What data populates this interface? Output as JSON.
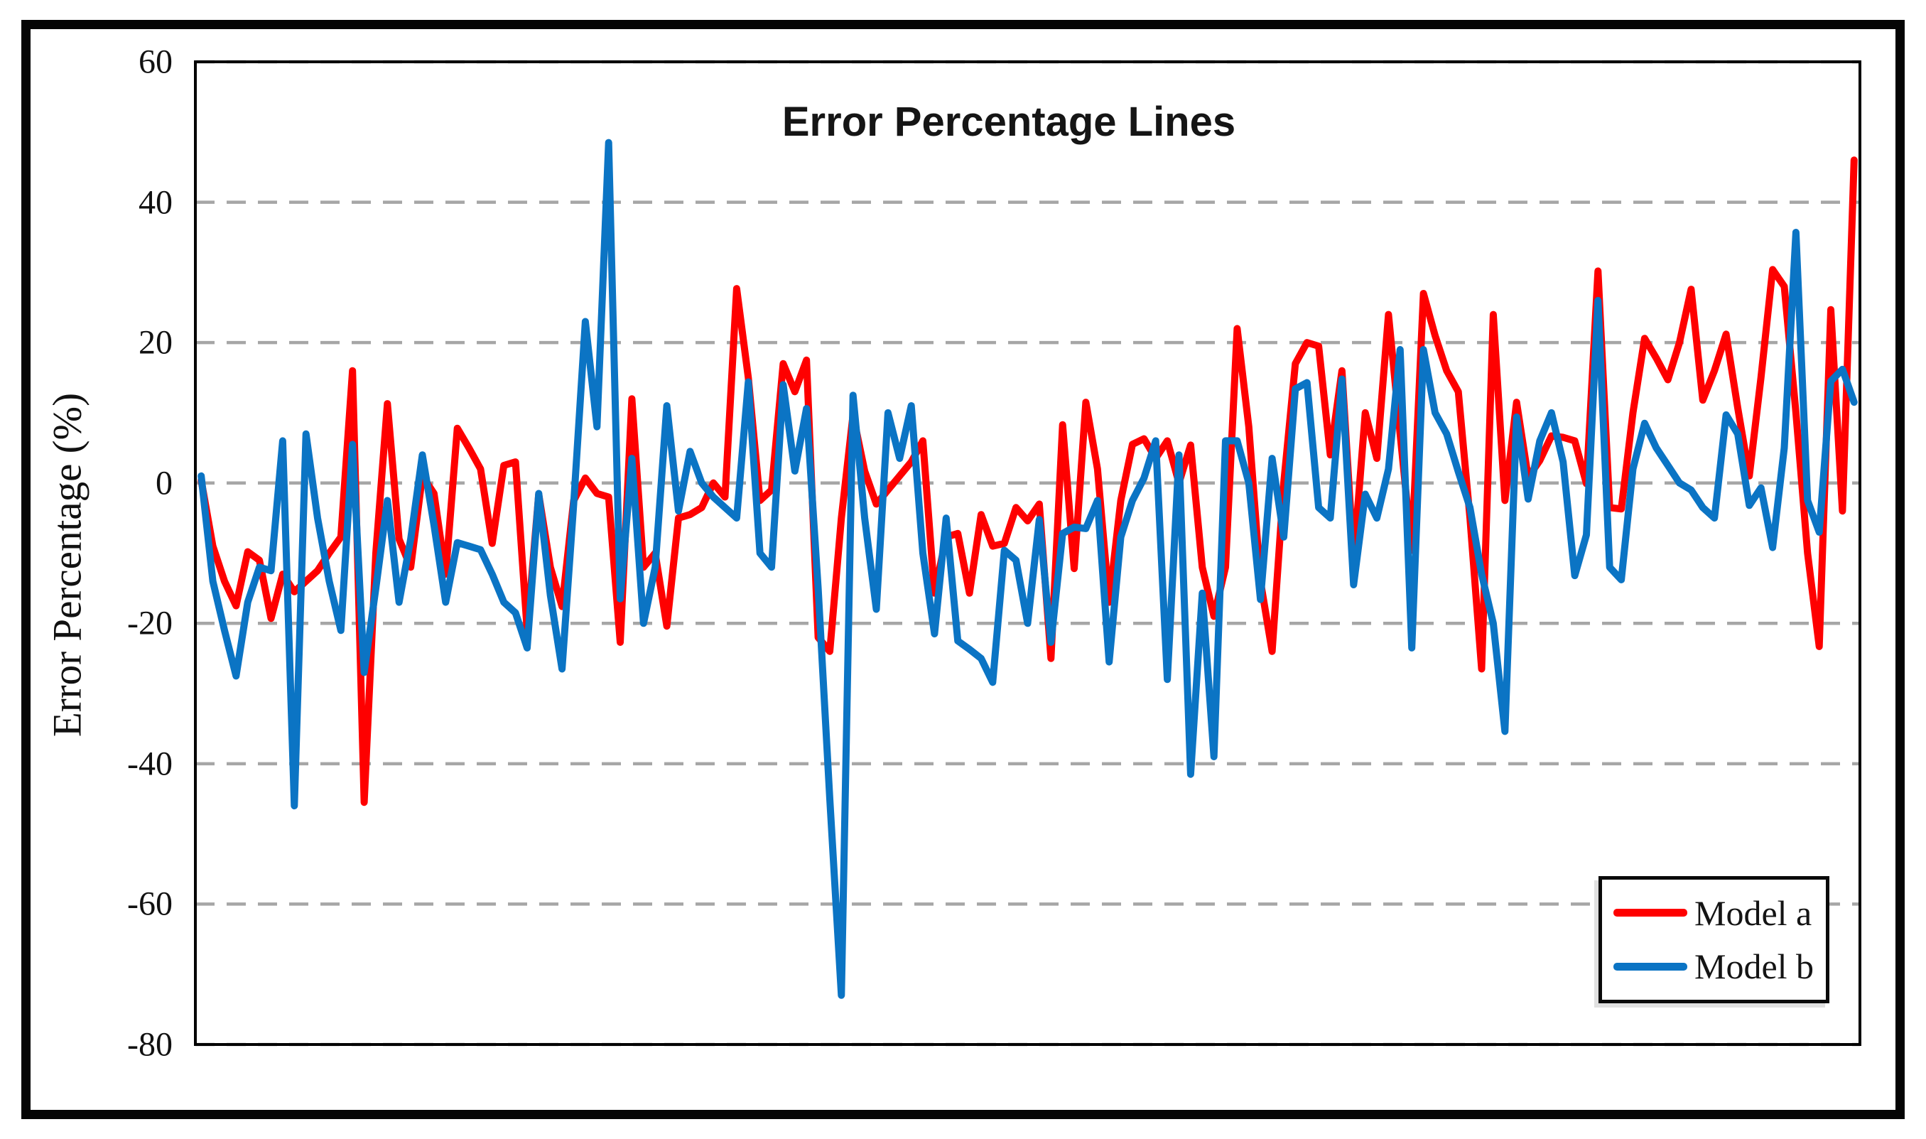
{
  "chart_data": {
    "type": "line",
    "title": "Error Percentage Lines",
    "xlabel": "",
    "ylabel": "Error Percentage (%)",
    "ylim": [
      -80,
      60
    ],
    "y_ticks": [
      60,
      40,
      20,
      0,
      -20,
      -40,
      -60,
      -80
    ],
    "x_axis_labels": "none",
    "grid": "horizontal-dashed",
    "grid_color": "#a6a6a6",
    "plot_border_color": "#000000",
    "legend_position": "bottom-right",
    "series": [
      {
        "name": "Model a",
        "color": "#fe0000",
        "values": [
          0.4,
          -9,
          -14,
          -17.5,
          -9.8,
          -11,
          -19.3,
          -13,
          -15.5,
          -14,
          -12.5,
          -10,
          -7.7,
          16,
          -45.5,
          -10,
          11.3,
          -8,
          -12,
          1,
          -1.5,
          -13,
          7.8,
          5,
          2,
          -8.6,
          2.5,
          3,
          -21,
          -1.6,
          -12,
          -17.6,
          -2.5,
          0.7,
          -1.5,
          -2,
          -22.7,
          12,
          -12,
          -10,
          -20.4,
          -5,
          -4.5,
          -3.5,
          0,
          -2,
          27.7,
          15,
          -2.5,
          -1,
          17,
          13,
          17.5,
          -22,
          -24,
          -5,
          9.7,
          1.7,
          -3,
          -1,
          1,
          3,
          6,
          -15.7,
          -7.7,
          -7.2,
          -15.7,
          -4.5,
          -9,
          -8.6,
          -3.5,
          -5.4,
          -3,
          -25,
          8.3,
          -12.2,
          11.5,
          2,
          -17,
          -2.5,
          5.5,
          6.3,
          3.5,
          6,
          0,
          5.4,
          -12,
          -19,
          -12,
          22,
          8,
          -14,
          -24,
          0,
          17,
          20,
          19.5,
          4,
          16,
          -11,
          10,
          3.5,
          24,
          7,
          -9.6,
          27,
          21,
          16,
          13,
          -5,
          -26.5,
          24,
          -2.5,
          11.5,
          0.8,
          3.2,
          6.7,
          6.5,
          6,
          -0.1,
          30.2,
          -3.5,
          -3.7,
          10,
          20.6,
          17.8,
          14.7,
          20,
          27.6,
          11.8,
          16,
          21.2,
          10.7,
          1,
          15,
          30.4,
          28,
          10,
          -10,
          -23.3,
          24.7,
          -4,
          46
        ]
      },
      {
        "name": "Model b",
        "color": "#0b74c4",
        "values": [
          1,
          -14,
          -21,
          -27.5,
          -17,
          -12,
          -12.5,
          6,
          -46,
          7,
          -5,
          -14,
          -21,
          5.5,
          -27,
          -15,
          -2.5,
          -17,
          -8,
          4,
          -6,
          -17,
          -8.5,
          -9,
          -9.5,
          -13,
          -17,
          -18.5,
          -23.5,
          -1.5,
          -16,
          -26.5,
          -3,
          23,
          8,
          48.5,
          -16.5,
          3.5,
          -20,
          -12,
          11,
          -4,
          4.5,
          0,
          -2,
          -3.5,
          -5,
          14.4,
          -10,
          -12,
          14,
          1.7,
          10.6,
          -15,
          -45,
          -73,
          12.5,
          -5,
          -18,
          10,
          3.5,
          11,
          -10,
          -21.5,
          -5,
          -22.5,
          -23.7,
          -25,
          -28.4,
          -9.6,
          -11,
          -20,
          -5.2,
          -22.7,
          -7.2,
          -6.3,
          -6.5,
          -2.5,
          -25.5,
          -7.7,
          -2.5,
          0.7,
          6,
          -28,
          4,
          -41.5,
          -15.7,
          -39,
          6,
          6,
          0,
          -16.6,
          3.5,
          -7.7,
          13.4,
          14.3,
          -3.5,
          -5,
          14.8,
          -14.5,
          -1.6,
          -5,
          2,
          19,
          -23.5,
          19,
          10,
          7,
          1.6,
          -3.5,
          -13,
          -20,
          -35.4,
          9.4,
          -2.3,
          6,
          10,
          3,
          -13.2,
          -7.4,
          26,
          -12,
          -13.8,
          2,
          8.5,
          5,
          2.5,
          0,
          -1,
          -3.5,
          -5,
          9.7,
          7,
          -3.2,
          -0.7,
          -9.2,
          5,
          35.7,
          -2.5,
          -7,
          14.5,
          16.2,
          11.5
        ]
      }
    ]
  }
}
